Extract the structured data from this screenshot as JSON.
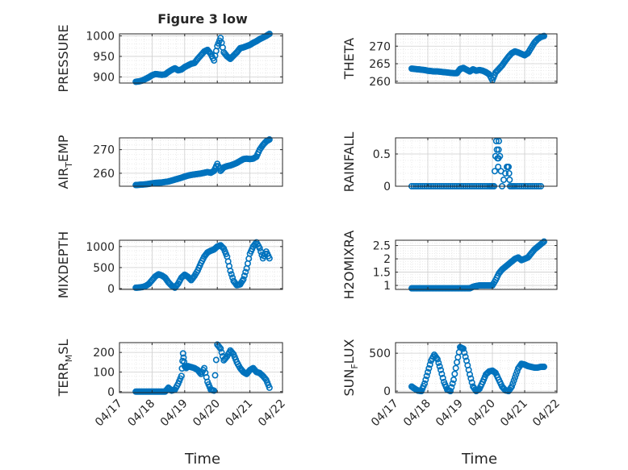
{
  "figure": {
    "title": "Figure 3 low",
    "xlabel": "Time",
    "x_tick_labels": [
      "04/17",
      "04/18",
      "04/19",
      "04/20",
      "04/21",
      "04/22"
    ],
    "marker_color": "#0072BD",
    "marker": "open-circle"
  },
  "chart_data": [
    {
      "type": "scatter",
      "name": "PRESSURE",
      "ylabel": "PRESSURE",
      "xlim": [
        "04/17",
        "04/22"
      ],
      "ylim": [
        885,
        1005
      ],
      "yticks": [
        900,
        950,
        1000
      ],
      "grid": true,
      "x": [
        17.5,
        17.6,
        17.7,
        17.8,
        17.9,
        18.0,
        18.1,
        18.2,
        18.3,
        18.4,
        18.5,
        18.6,
        18.7,
        18.8,
        18.9,
        19.0,
        19.1,
        19.2,
        19.3,
        19.4,
        19.5,
        19.6,
        19.7,
        19.8,
        19.9,
        20.0,
        20.1,
        20.2,
        20.3,
        20.4,
        20.5,
        20.6,
        20.7,
        20.8,
        20.9,
        21.0,
        21.1,
        21.2,
        21.3,
        21.4,
        21.5,
        21.6
      ],
      "y": [
        888,
        889,
        891,
        895,
        899,
        904,
        907,
        906,
        905,
        906,
        912,
        917,
        921,
        916,
        918,
        924,
        928,
        932,
        934,
        944,
        953,
        962,
        966,
        956,
        940,
        975,
        995,
        960,
        950,
        944,
        952,
        960,
        970,
        972,
        975,
        978,
        983,
        987,
        992,
        996,
        1000,
        1005
      ]
    },
    {
      "type": "scatter",
      "name": "THETA",
      "ylabel": "THETA",
      "xlim": [
        "04/17",
        "04/22"
      ],
      "ylim": [
        259.5,
        273.5
      ],
      "yticks": [
        260,
        265,
        270
      ],
      "grid": true,
      "x": [
        17.5,
        17.6,
        17.7,
        17.8,
        17.9,
        18.0,
        18.1,
        18.2,
        18.3,
        18.4,
        18.5,
        18.6,
        18.7,
        18.8,
        18.9,
        19.0,
        19.1,
        19.2,
        19.3,
        19.4,
        19.5,
        19.6,
        19.7,
        19.8,
        19.9,
        20.0,
        20.1,
        20.2,
        20.3,
        20.4,
        20.5,
        20.6,
        20.7,
        20.8,
        20.9,
        21.0,
        21.1,
        21.2,
        21.3,
        21.4,
        21.5,
        21.6
      ],
      "y": [
        263.6,
        263.5,
        263.4,
        263.3,
        263.2,
        263.0,
        262.9,
        262.8,
        262.8,
        262.7,
        262.6,
        262.5,
        262.4,
        262.3,
        262.3,
        263.5,
        263.8,
        263.3,
        262.8,
        263.4,
        263.0,
        263.2,
        263.0,
        262.6,
        262.0,
        260.3,
        262.5,
        263.5,
        264.5,
        265.8,
        267.0,
        268.0,
        268.5,
        268.2,
        267.8,
        267.4,
        268.0,
        269.5,
        271.0,
        272.0,
        272.6,
        272.9
      ]
    },
    {
      "type": "scatter",
      "name": "AIR_TEMP",
      "ylabel_parts": [
        "AIR",
        "T",
        "EMP"
      ],
      "xlim": [
        "04/17",
        "04/22"
      ],
      "ylim": [
        254.5,
        275
      ],
      "yticks": [
        260,
        270
      ],
      "grid": true,
      "x": [
        17.5,
        17.6,
        17.7,
        17.8,
        17.9,
        18.0,
        18.1,
        18.2,
        18.3,
        18.4,
        18.5,
        18.6,
        18.7,
        18.8,
        18.9,
        19.0,
        19.1,
        19.2,
        19.3,
        19.4,
        19.5,
        19.6,
        19.7,
        19.8,
        19.9,
        20.0,
        20.1,
        20.2,
        20.3,
        20.4,
        20.5,
        20.6,
        20.7,
        20.8,
        20.9,
        21.0,
        21.1,
        21.2,
        21.3,
        21.4,
        21.5,
        21.6
      ],
      "y": [
        255.0,
        255.1,
        255.2,
        255.3,
        255.5,
        255.7,
        255.9,
        256.0,
        256.1,
        256.3,
        256.5,
        256.9,
        257.3,
        257.7,
        258.1,
        258.6,
        259.0,
        259.3,
        259.5,
        259.7,
        259.9,
        260.2,
        260.5,
        260.2,
        261.0,
        264.0,
        261.0,
        262.5,
        263.0,
        263.3,
        263.8,
        264.4,
        265.2,
        266.0,
        266.2,
        266.0,
        266.2,
        267.0,
        270.0,
        272.0,
        273.5,
        274.3
      ]
    },
    {
      "type": "scatter",
      "name": "RAINFALL",
      "ylabel": "RAINFALL",
      "xlim": [
        "04/17",
        "04/22"
      ],
      "ylim": [
        0,
        0.75
      ],
      "yticks": [
        0,
        0.5
      ],
      "grid": true,
      "x": [
        17.5,
        17.7,
        17.9,
        18.1,
        18.3,
        18.5,
        18.7,
        18.9,
        19.1,
        19.3,
        19.5,
        19.7,
        19.9,
        20.05,
        20.12,
        20.18,
        20.2,
        20.3,
        20.45,
        20.5,
        20.55,
        20.7,
        20.9,
        21.1,
        21.3,
        21.5
      ],
      "y": [
        0,
        0,
        0,
        0,
        0,
        0,
        0,
        0,
        0,
        0,
        0,
        0,
        0,
        0,
        0.7,
        0.3,
        0.7,
        0,
        0.3,
        0.3,
        0,
        0,
        0,
        0,
        0,
        0
      ]
    },
    {
      "type": "scatter",
      "name": "MIXDEPTH",
      "ylabel": "MIXDEPTH",
      "xlim": [
        "04/17",
        "04/22"
      ],
      "ylim": [
        -20,
        1150
      ],
      "yticks": [
        0,
        500,
        1000
      ],
      "grid": true,
      "x": [
        17.5,
        17.6,
        17.7,
        17.8,
        17.9,
        18.0,
        18.1,
        18.2,
        18.3,
        18.4,
        18.5,
        18.6,
        18.7,
        18.8,
        18.9,
        19.0,
        19.1,
        19.2,
        19.3,
        19.4,
        19.5,
        19.6,
        19.7,
        19.8,
        19.9,
        20.0,
        20.1,
        20.2,
        20.3,
        20.4,
        20.5,
        20.6,
        20.7,
        20.8,
        20.9,
        21.0,
        21.1,
        21.2,
        21.3,
        21.4,
        21.5,
        21.6
      ],
      "y": [
        20,
        25,
        35,
        60,
        110,
        200,
        290,
        340,
        310,
        260,
        150,
        70,
        20,
        120,
        260,
        330,
        280,
        200,
        300,
        430,
        610,
        760,
        860,
        900,
        930,
        1000,
        1030,
        950,
        760,
        420,
        180,
        80,
        100,
        220,
        480,
        830,
        1000,
        1100,
        960,
        720,
        880,
        720
      ]
    },
    {
      "type": "scatter",
      "name": "H2OMIXRA",
      "ylabel": "H2OMIXRA",
      "xlim": [
        "04/17",
        "04/22"
      ],
      "ylim": [
        0.85,
        2.7
      ],
      "yticks": [
        1,
        1.5,
        2,
        2.5
      ],
      "grid": true,
      "x": [
        17.5,
        17.6,
        17.7,
        17.8,
        17.9,
        18.0,
        18.1,
        18.2,
        18.3,
        18.4,
        18.5,
        18.6,
        18.7,
        18.8,
        18.9,
        19.0,
        19.1,
        19.2,
        19.3,
        19.4,
        19.5,
        19.6,
        19.7,
        19.8,
        19.9,
        20.0,
        20.1,
        20.2,
        20.3,
        20.4,
        20.5,
        20.6,
        20.7,
        20.8,
        20.9,
        21.0,
        21.1,
        21.2,
        21.3,
        21.4,
        21.5,
        21.6
      ],
      "y": [
        0.89,
        0.89,
        0.89,
        0.89,
        0.89,
        0.89,
        0.89,
        0.89,
        0.89,
        0.89,
        0.89,
        0.89,
        0.89,
        0.89,
        0.89,
        0.89,
        0.89,
        0.89,
        0.89,
        0.95,
        0.98,
        1.0,
        1.0,
        1.0,
        1.0,
        1.0,
        1.2,
        1.45,
        1.6,
        1.7,
        1.8,
        1.9,
        2.0,
        2.05,
        1.95,
        2.0,
        2.05,
        2.2,
        2.35,
        2.45,
        2.55,
        2.65
      ]
    },
    {
      "type": "scatter",
      "name": "TERR_MSL",
      "ylabel_parts": [
        "TERR",
        "M",
        "SL"
      ],
      "xlim": [
        "04/17",
        "04/22"
      ],
      "ylim": [
        -5,
        250
      ],
      "yticks": [
        0,
        100,
        200
      ],
      "grid": true,
      "x": [
        17.5,
        17.6,
        17.7,
        17.8,
        17.9,
        18.0,
        18.1,
        18.2,
        18.3,
        18.4,
        18.5,
        18.6,
        18.7,
        18.8,
        18.9,
        18.95,
        19.0,
        19.05,
        19.1,
        19.2,
        19.3,
        19.4,
        19.5,
        19.6,
        19.7,
        19.8,
        19.9,
        20.0,
        20.1,
        20.2,
        20.3,
        20.4,
        20.5,
        20.6,
        20.7,
        20.8,
        20.9,
        21.0,
        21.1,
        21.2,
        21.3,
        21.4,
        21.5,
        21.6
      ],
      "y": [
        0,
        0,
        0,
        0,
        0,
        0,
        0,
        0,
        0,
        0,
        20,
        5,
        10,
        40,
        80,
        195,
        130,
        120,
        130,
        125,
        120,
        110,
        90,
        120,
        50,
        10,
        5,
        240,
        220,
        160,
        180,
        210,
        190,
        150,
        120,
        100,
        90,
        110,
        120,
        100,
        95,
        80,
        60,
        20
      ]
    },
    {
      "type": "scatter",
      "name": "SUN_FLUX",
      "ylabel_parts": [
        "SUN",
        "F",
        "LUX"
      ],
      "xlim": [
        "04/17",
        "04/22"
      ],
      "ylim": [
        -20,
        640
      ],
      "yticks": [
        0,
        500
      ],
      "grid": true,
      "x": [
        17.5,
        17.6,
        17.7,
        17.8,
        17.9,
        18.0,
        18.1,
        18.2,
        18.3,
        18.4,
        18.5,
        18.6,
        18.7,
        18.8,
        18.9,
        19.0,
        19.1,
        19.2,
        19.3,
        19.4,
        19.5,
        19.6,
        19.7,
        19.8,
        19.9,
        20.0,
        20.1,
        20.2,
        20.3,
        20.4,
        20.5,
        20.6,
        20.7,
        20.8,
        20.9,
        21.0,
        21.1,
        21.2,
        21.3,
        21.4,
        21.5,
        21.6
      ],
      "y": [
        60,
        30,
        5,
        0,
        100,
        250,
        400,
        480,
        420,
        280,
        120,
        20,
        0,
        150,
        380,
        580,
        560,
        400,
        220,
        60,
        0,
        30,
        120,
        220,
        260,
        270,
        240,
        150,
        60,
        10,
        0,
        60,
        180,
        300,
        360,
        350,
        330,
        320,
        310,
        310,
        320,
        320
      ]
    }
  ]
}
